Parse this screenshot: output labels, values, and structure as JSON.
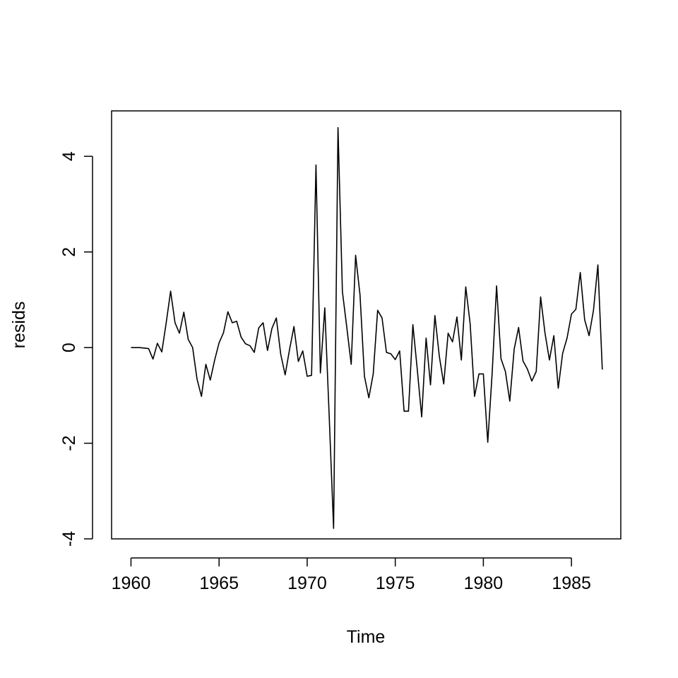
{
  "chart_data": {
    "type": "line",
    "title": "",
    "xlabel": "Time",
    "ylabel": "resids",
    "xlim": [
      1958.9,
      1987.8
    ],
    "ylim": [
      -4.0,
      4.95
    ],
    "x_ticks": [
      1960,
      1965,
      1970,
      1975,
      1980,
      1985
    ],
    "x_tick_labels": [
      "1960",
      "1965",
      "1970",
      "1975",
      "1980",
      "1985"
    ],
    "y_ticks": [
      -4,
      -2,
      0,
      2,
      4
    ],
    "y_tick_labels": [
      "-4",
      "-2",
      "0",
      "2",
      "4"
    ],
    "grid": false,
    "legend": "none",
    "line_color": "#000000",
    "series": [
      {
        "x_start": 1960.0,
        "step": 0.25,
        "values": [
          0.0,
          0.0,
          0.0,
          -0.01,
          -0.02,
          -0.24,
          0.09,
          -0.09,
          0.52,
          1.18,
          0.52,
          0.3,
          0.74,
          0.17,
          0.0,
          -0.66,
          -1.02,
          -0.35,
          -0.68,
          -0.26,
          0.1,
          0.31,
          0.75,
          0.52,
          0.55,
          0.22,
          0.08,
          0.04,
          -0.1,
          0.41,
          0.52,
          -0.06,
          0.4,
          0.62,
          -0.14,
          -0.57,
          -0.04,
          0.44,
          -0.29,
          -0.07,
          -0.6,
          -0.58,
          3.82,
          -0.53,
          0.83,
          -1.43,
          -3.78,
          4.6,
          1.17,
          0.42,
          -0.35,
          1.93,
          1.1,
          -0.6,
          -1.05,
          -0.55,
          0.78,
          0.62,
          -0.1,
          -0.13,
          -0.25,
          -0.07,
          -1.33,
          -1.33,
          0.48,
          -0.46,
          -1.45,
          0.2,
          -0.78,
          0.67,
          -0.18,
          -0.76,
          0.3,
          0.12,
          0.64,
          -0.26,
          1.27,
          0.5,
          -1.02,
          -0.55,
          -0.55,
          -1.98,
          -0.53,
          1.29,
          -0.23,
          -0.5,
          -1.12,
          -0.03,
          0.42,
          -0.28,
          -0.45,
          -0.7,
          -0.5,
          1.06,
          0.3,
          -0.26,
          0.25,
          -0.85,
          -0.12,
          0.2,
          0.7,
          0.8,
          1.57,
          0.58,
          0.25,
          0.78,
          1.73,
          -0.46
        ]
      }
    ]
  }
}
